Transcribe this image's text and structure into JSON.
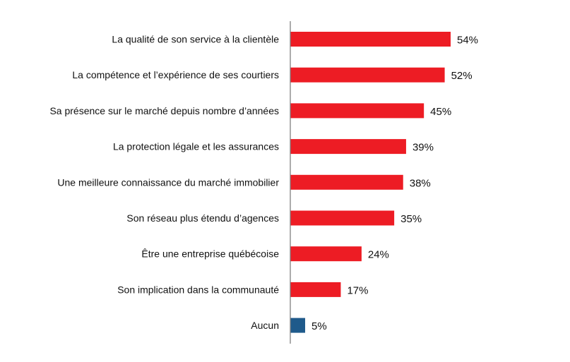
{
  "chart_data": {
    "type": "bar",
    "orientation": "horizontal",
    "categories": [
      "La qualité de son service à la clientèle",
      "La compétence et l’expérience de ses courtiers",
      "Sa présence sur le marché depuis nombre d’années",
      "La protection légale et les assurances",
      "Une meilleure connaissance du marché immobilier",
      "Son réseau plus étendu d’agences",
      "Être une entreprise québécoise",
      "Son implication dans la communauté",
      "Aucun"
    ],
    "values": [
      54,
      52,
      45,
      39,
      38,
      35,
      24,
      17,
      5
    ],
    "data_labels": [
      "54%",
      "52%",
      "45%",
      "39%",
      "38%",
      "35%",
      "24%",
      "17%",
      "5%"
    ],
    "bar_colors": [
      "#ED1C24",
      "#ED1C24",
      "#ED1C24",
      "#ED1C24",
      "#ED1C24",
      "#ED1C24",
      "#ED1C24",
      "#ED1C24",
      "#1F5A8B"
    ],
    "grid": false,
    "legend": "none",
    "xlim": [
      0,
      100
    ]
  }
}
